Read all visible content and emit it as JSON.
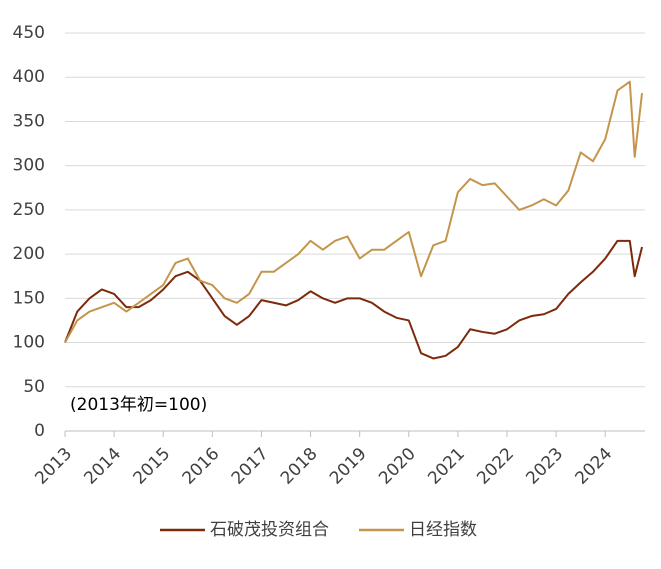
{
  "chart_data": {
    "type": "line",
    "annotation": "(2013年初=100)",
    "x": [
      2013,
      2013.25,
      2013.5,
      2013.75,
      2014,
      2014.25,
      2014.5,
      2014.75,
      2015,
      2015.25,
      2015.5,
      2015.75,
      2016,
      2016.25,
      2016.5,
      2016.75,
      2017,
      2017.25,
      2017.5,
      2017.75,
      2018,
      2018.25,
      2018.5,
      2018.75,
      2019,
      2019.25,
      2019.5,
      2019.75,
      2020,
      2020.25,
      2020.5,
      2020.75,
      2021,
      2021.25,
      2021.5,
      2021.75,
      2022,
      2022.25,
      2022.5,
      2022.75,
      2023,
      2023.25,
      2023.5,
      2023.75,
      2024,
      2024.25,
      2024.5,
      2024.6,
      2024.75
    ],
    "series": [
      {
        "name": "石破茂投资组合",
        "color": "#7b2a0c",
        "values": [
          100,
          135,
          150,
          160,
          155,
          140,
          140,
          148,
          160,
          175,
          180,
          170,
          150,
          130,
          120,
          130,
          148,
          145,
          142,
          148,
          158,
          150,
          145,
          150,
          150,
          145,
          135,
          128,
          125,
          88,
          82,
          85,
          95,
          115,
          112,
          110,
          115,
          125,
          130,
          132,
          138,
          155,
          168,
          180,
          195,
          215,
          215,
          175,
          208
        ]
      },
      {
        "name": "日经指数",
        "color": "#c4954c",
        "values": [
          100,
          125,
          135,
          140,
          145,
          135,
          145,
          155,
          165,
          190,
          195,
          170,
          165,
          150,
          145,
          155,
          180,
          180,
          190,
          200,
          215,
          205,
          215,
          220,
          195,
          205,
          205,
          215,
          225,
          175,
          210,
          215,
          270,
          285,
          278,
          280,
          265,
          250,
          255,
          262,
          255,
          272,
          315,
          305,
          330,
          385,
          395,
          310,
          382
        ]
      }
    ],
    "xlim": [
      2013,
      2024.81
    ],
    "xticks": [
      2013,
      2014,
      2015,
      2016,
      2017,
      2018,
      2019,
      2020,
      2021,
      2022,
      2023,
      2024
    ],
    "ylim": [
      0,
      450
    ],
    "yticks": [
      0,
      50,
      100,
      150,
      200,
      250,
      300,
      350,
      400,
      450
    ],
    "grid": true,
    "legend": "bottom"
  }
}
